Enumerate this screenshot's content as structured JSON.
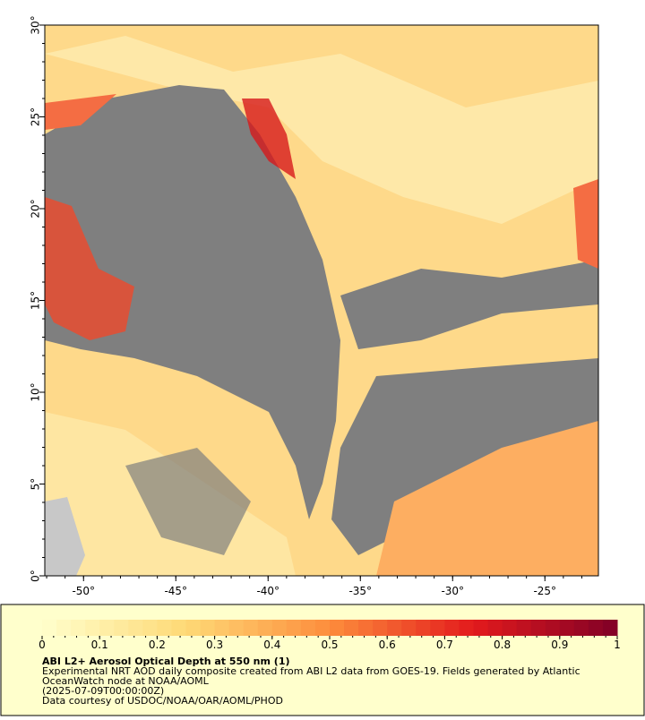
{
  "map": {
    "lon_range": [
      -52.1,
      -22.1
    ],
    "lat_range": [
      0,
      30
    ],
    "x_ticks": [
      {
        "value": -50,
        "label": "-50°"
      },
      {
        "value": -45,
        "label": "-45°"
      },
      {
        "value": -40,
        "label": "-40°"
      },
      {
        "value": -35,
        "label": "-35°"
      },
      {
        "value": -30,
        "label": "-30°"
      },
      {
        "value": -25,
        "label": "-25°"
      }
    ],
    "y_ticks": [
      {
        "value": 0,
        "label": "0°"
      },
      {
        "value": 5,
        "label": "5°"
      },
      {
        "value": 10,
        "label": "10°"
      },
      {
        "value": 15,
        "label": "15°"
      },
      {
        "value": 20,
        "label": "20°"
      },
      {
        "value": 25,
        "label": "25°"
      },
      {
        "value": 30,
        "label": "30°"
      }
    ]
  },
  "colorbar": {
    "range": [
      0,
      1
    ],
    "ticks": [
      0,
      0.1,
      0.2,
      0.3,
      0.4,
      0.5,
      0.6,
      0.7,
      0.8,
      0.9,
      1
    ]
  },
  "info": {
    "title": "ABI L2+ Aerosol Optical Depth at 550 nm (1)",
    "lines": [
      "Experimental NRT AOD daily composite created from ABI L2 data from GOES-19. Fields generated by Atlantic",
      "OceanWatch node at NOAA/AOML",
      "(2025-07-09T00:00:00Z)",
      "Data courtesy of USDOC/NOAA/OAR/AOML/PHOD"
    ]
  }
}
